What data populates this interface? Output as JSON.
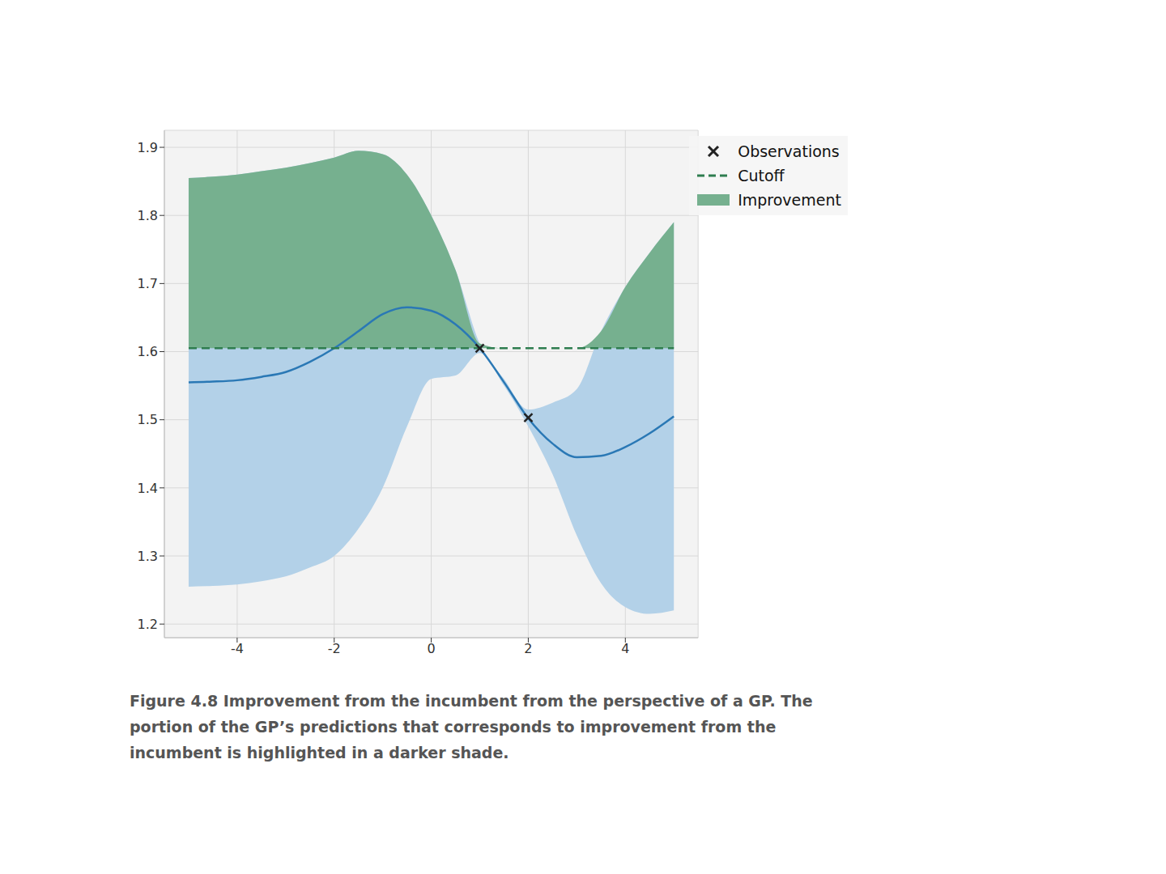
{
  "chart_data": {
    "type": "line",
    "caption": "Figure 4.8 Improvement from the incumbent from the perspective of a GP. The portion of the GP’s predictions that corresponds to improvement from the incumbent is highlighted in a darker shade.",
    "x": [
      -5,
      -4.5,
      -4,
      -3.5,
      -3,
      -2.5,
      -2,
      -1.5,
      -1,
      -0.5,
      0,
      0.5,
      1,
      1.5,
      2,
      2.5,
      3,
      3.5,
      4,
      4.5,
      5
    ],
    "mean": {
      "color": "#2a78b5",
      "values": [
        1.555,
        1.556,
        1.558,
        1.563,
        1.57,
        1.585,
        1.605,
        1.63,
        1.655,
        1.665,
        1.66,
        1.64,
        1.605,
        1.555,
        1.502,
        1.465,
        1.445,
        1.447,
        1.46,
        1.48,
        1.505
      ]
    },
    "band": {
      "color": "#b3d1e8",
      "lower": [
        1.255,
        1.256,
        1.258,
        1.263,
        1.27,
        1.283,
        1.3,
        1.34,
        1.4,
        1.49,
        1.56,
        1.565,
        1.598,
        1.55,
        1.49,
        1.42,
        1.33,
        1.26,
        1.225,
        1.215,
        1.22
      ],
      "upper": [
        1.855,
        1.857,
        1.86,
        1.865,
        1.87,
        1.877,
        1.885,
        1.895,
        1.89,
        1.86,
        1.8,
        1.72,
        1.612,
        1.56,
        1.515,
        1.525,
        1.545,
        1.63,
        1.695,
        1.745,
        1.79
      ]
    },
    "observations": {
      "name": "Observations",
      "color": "#222222",
      "marker": "x",
      "x": [
        1,
        2
      ],
      "y": [
        1.605,
        1.503
      ]
    },
    "cutoff": {
      "name": "Cutoff",
      "color": "#2e7d4f",
      "line_style": "dashed",
      "value": 1.605
    },
    "improvement": {
      "name": "Improvement",
      "color": "#76b08f"
    },
    "xlim": [
      -5.5,
      5.5
    ],
    "xticks": [
      -4,
      -2,
      0,
      2,
      4
    ],
    "ylim": [
      1.18,
      1.925
    ],
    "yticks": [
      1.2,
      1.3,
      1.4,
      1.5,
      1.6,
      1.7,
      1.8,
      1.9
    ],
    "grid": true,
    "legend": "upper right"
  }
}
